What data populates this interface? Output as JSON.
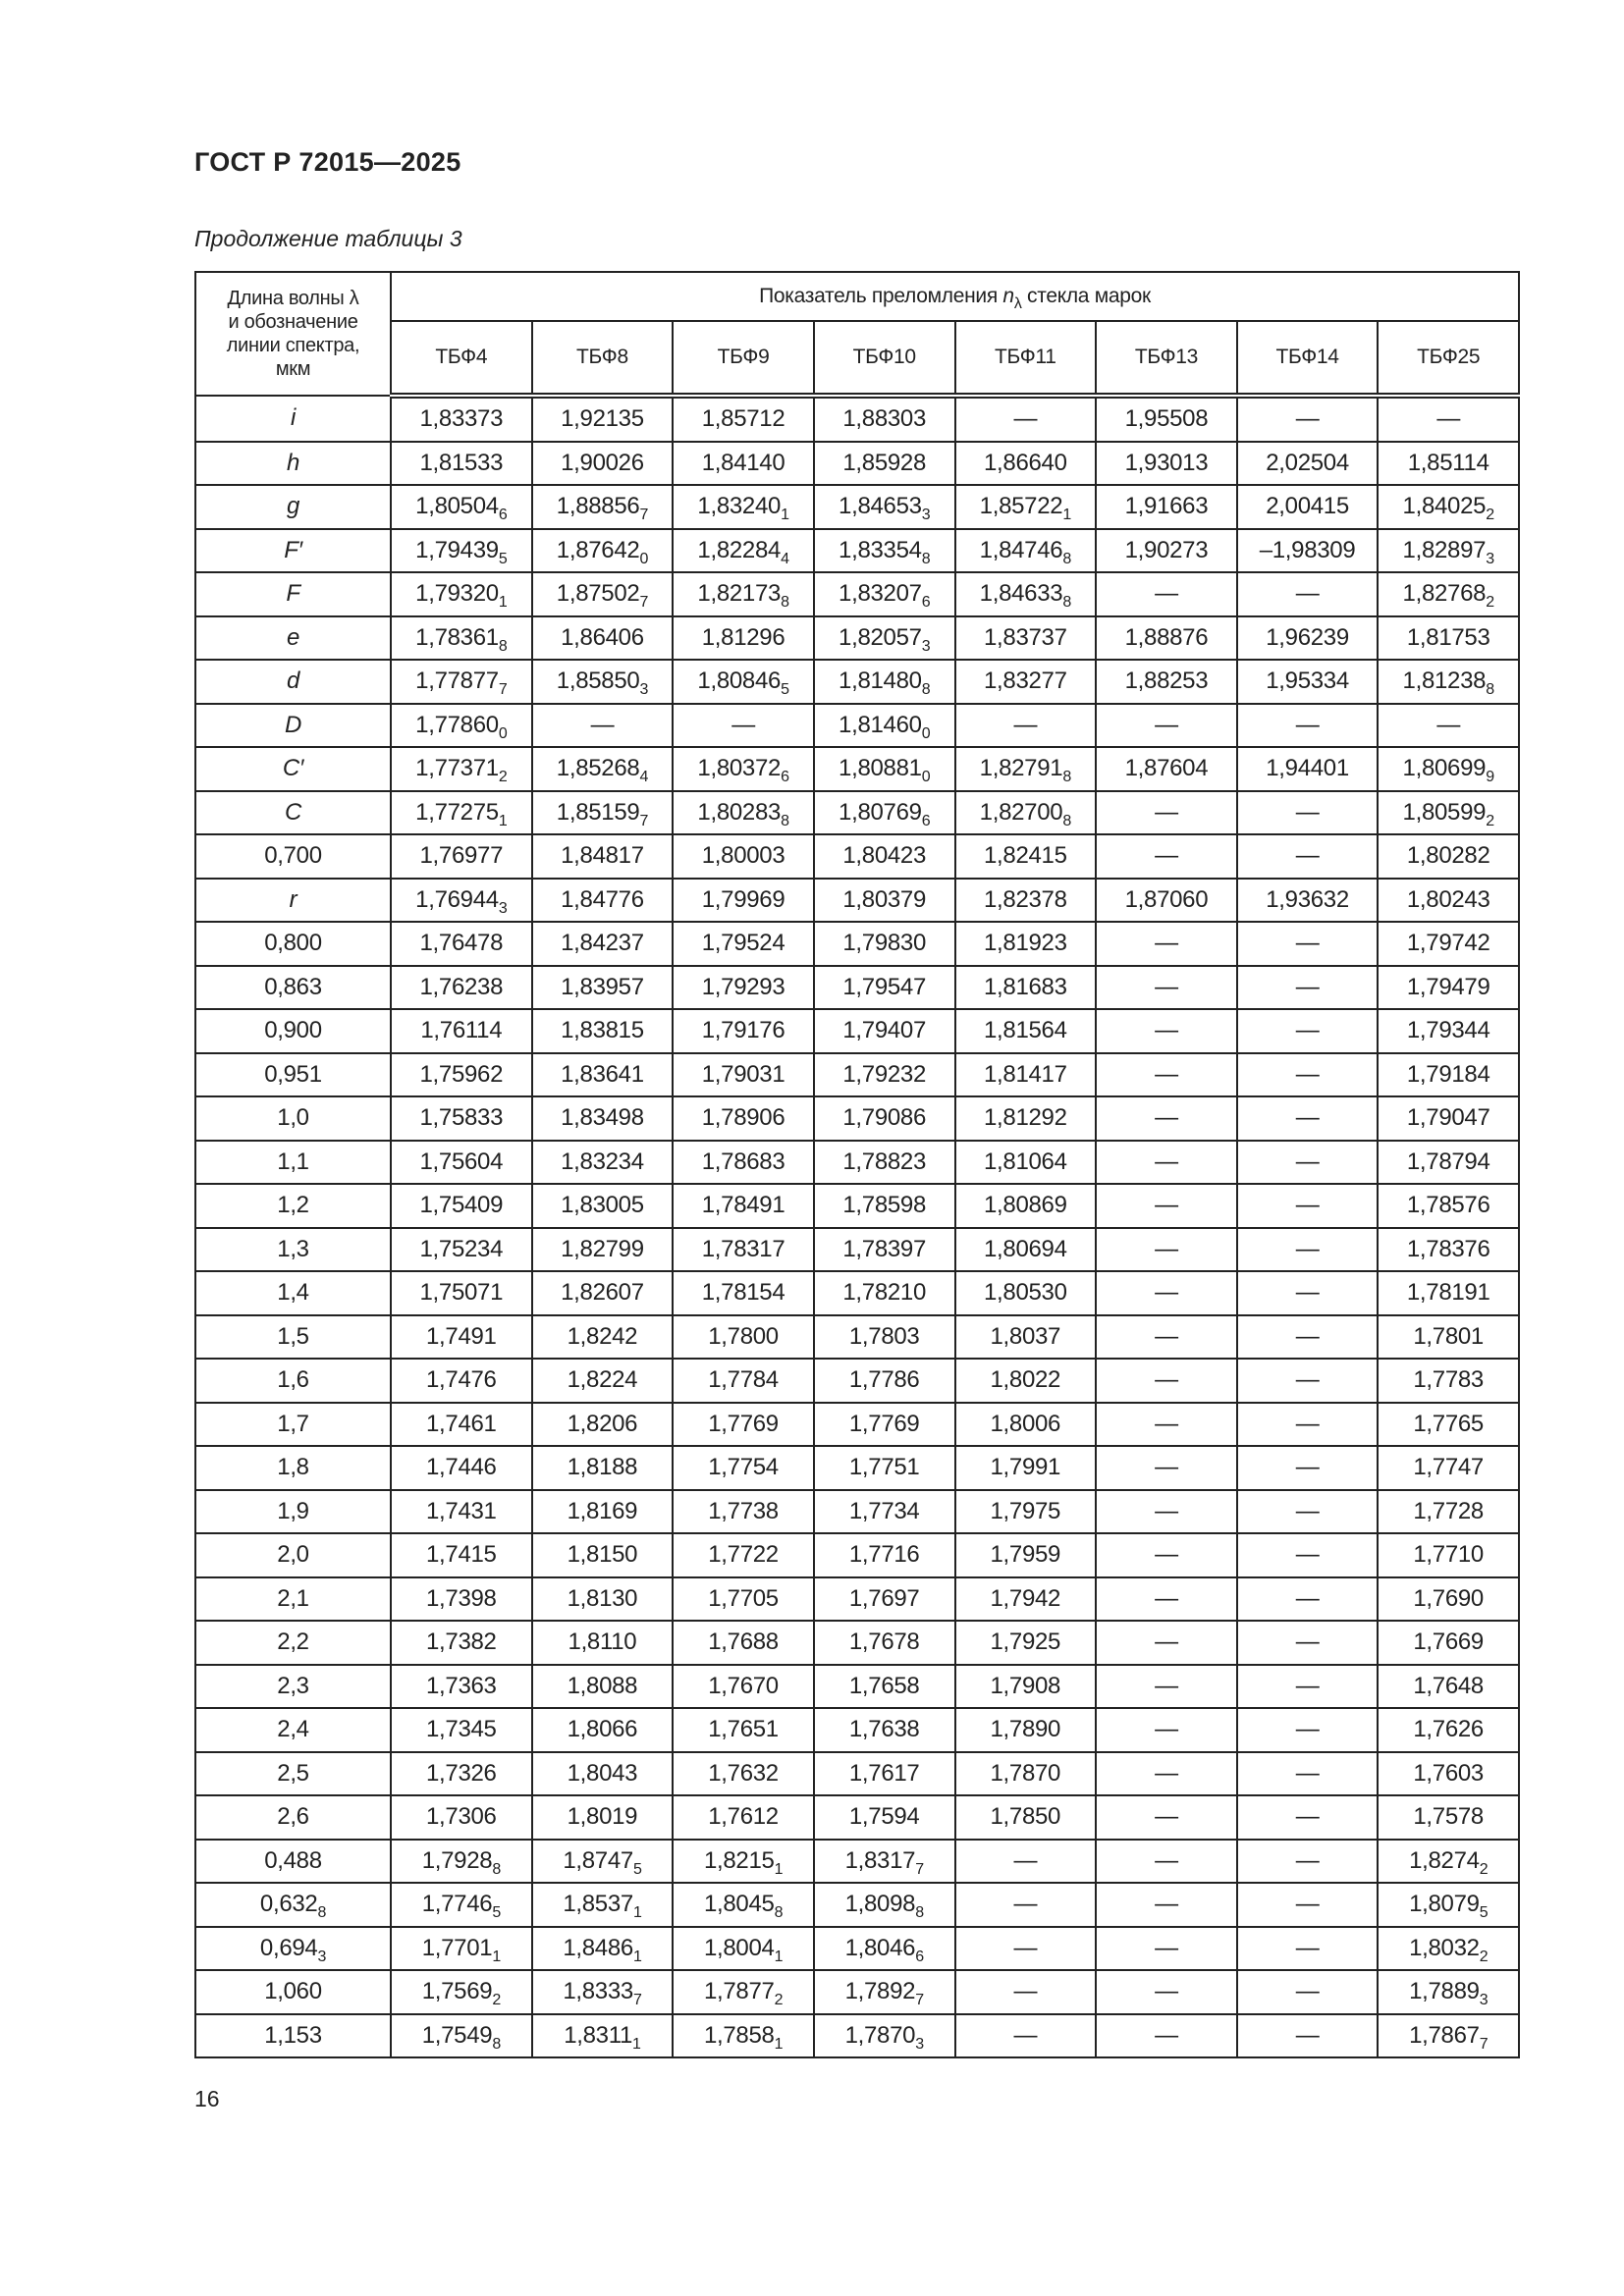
{
  "header": {
    "doc_title": "ГОСТ Р 72015—2025",
    "caption": "Продолжение таблицы 3",
    "page_number": "16"
  },
  "table": {
    "lead_header": [
      "Длина волны λ",
      "и обозначение",
      "линии спектра,",
      "мкм"
    ],
    "group_header": {
      "text_before": "Показатель преломления ",
      "symbol": "n",
      "symbol_sub": "λ",
      "text_after": " стекла марок"
    },
    "columns": [
      "ТБФ4",
      "ТБФ8",
      "ТБФ9",
      "ТБФ10",
      "ТБФ11",
      "ТБФ13",
      "ТБФ14",
      "ТБФ25"
    ],
    "rows": [
      {
        "label": "i",
        "italic": true,
        "cells": [
          "1,83373",
          "1,92135",
          "1,85712",
          "1,88303",
          "—",
          "1,95508",
          "—",
          "—"
        ]
      },
      {
        "label": "h",
        "italic": true,
        "cells": [
          "1,81533",
          "1,90026",
          "1,84140",
          "1,85928",
          "1,86640",
          "1,93013",
          "2,02504",
          "1,85114"
        ]
      },
      {
        "label": "g",
        "italic": true,
        "cells": [
          "1,80504_6",
          "1,88856_7",
          "1,83240_1",
          "1,84653_3",
          "1,85722_1",
          "1,91663",
          "2,00415",
          "1,84025_2"
        ]
      },
      {
        "label": "F′",
        "italic": true,
        "cells": [
          "1,79439_5",
          "1,87642_0",
          "1,82284_4",
          "1,83354_8",
          "1,84746_8",
          "1,90273",
          "–1,98309",
          "1,82897_3"
        ]
      },
      {
        "label": "F",
        "italic": true,
        "cells": [
          "1,79320_1",
          "1,87502_7",
          "1,82173_8",
          "1,83207_6",
          "1,84633_8",
          "—",
          "—",
          "1,82768_2"
        ]
      },
      {
        "label": "e",
        "italic": true,
        "cells": [
          "1,78361_8",
          "1,86406",
          "1,81296",
          "1,82057_3",
          "1,83737",
          "1,88876",
          "1,96239",
          "1,81753"
        ]
      },
      {
        "label": "d",
        "italic": true,
        "cells": [
          "1,77877_7",
          "1,85850_3",
          "1,80846_5",
          "1,81480_8",
          "1,83277",
          "1,88253",
          "1,95334",
          "1,81238_8"
        ]
      },
      {
        "label": "D",
        "italic": true,
        "cells": [
          "1,77860_0",
          "—",
          "—",
          "1,81460_0",
          "—",
          "—",
          "—",
          "—"
        ]
      },
      {
        "label": "C′",
        "italic": true,
        "cells": [
          "1,77371_2",
          "1,85268_4",
          "1,80372_6",
          "1,80881_0",
          "1,82791_8",
          "1,87604",
          "1,94401",
          "1,80699_9"
        ]
      },
      {
        "label": "C",
        "italic": true,
        "cells": [
          "1,77275_1",
          "1,85159_7",
          "1,80283_8",
          "1,80769_6",
          "1,82700_8",
          "—",
          "—",
          "1,80599_2"
        ]
      },
      {
        "label": "0,700",
        "italic": false,
        "cells": [
          "1,76977",
          "1,84817",
          "1,80003",
          "1,80423",
          "1,82415",
          "—",
          "—",
          "1,80282"
        ]
      },
      {
        "label": "r",
        "italic": true,
        "cells": [
          "1,76944_3",
          "1,84776",
          "1,79969",
          "1,80379",
          "1,82378",
          "1,87060",
          "1,93632",
          "1,80243"
        ]
      },
      {
        "label": "0,800",
        "italic": false,
        "cells": [
          "1,76478",
          "1,84237",
          "1,79524",
          "1,79830",
          "1,81923",
          "—",
          "—",
          "1,79742"
        ]
      },
      {
        "label": "0,863",
        "italic": false,
        "cells": [
          "1,76238",
          "1,83957",
          "1,79293",
          "1,79547",
          "1,81683",
          "—",
          "—",
          "1,79479"
        ]
      },
      {
        "label": "0,900",
        "italic": false,
        "cells": [
          "1,76114",
          "1,83815",
          "1,79176",
          "1,79407",
          "1,81564",
          "—",
          "—",
          "1,79344"
        ]
      },
      {
        "label": "0,951",
        "italic": false,
        "cells": [
          "1,75962",
          "1,83641",
          "1,79031",
          "1,79232",
          "1,81417",
          "—",
          "—",
          "1,79184"
        ]
      },
      {
        "label": "1,0",
        "italic": false,
        "cells": [
          "1,75833",
          "1,83498",
          "1,78906",
          "1,79086",
          "1,81292",
          "—",
          "—",
          "1,79047"
        ]
      },
      {
        "label": "1,1",
        "italic": false,
        "cells": [
          "1,75604",
          "1,83234",
          "1,78683",
          "1,78823",
          "1,81064",
          "—",
          "—",
          "1,78794"
        ]
      },
      {
        "label": "1,2",
        "italic": false,
        "cells": [
          "1,75409",
          "1,83005",
          "1,78491",
          "1,78598",
          "1,80869",
          "—",
          "—",
          "1,78576"
        ]
      },
      {
        "label": "1,3",
        "italic": false,
        "cells": [
          "1,75234",
          "1,82799",
          "1,78317",
          "1,78397",
          "1,80694",
          "—",
          "—",
          "1,78376"
        ]
      },
      {
        "label": "1,4",
        "italic": false,
        "cells": [
          "1,75071",
          "1,82607",
          "1,78154",
          "1,78210",
          "1,80530",
          "—",
          "—",
          "1,78191"
        ]
      },
      {
        "label": "1,5",
        "italic": false,
        "cells": [
          "1,7491",
          "1,8242",
          "1,7800",
          "1,7803",
          "1,8037",
          "—",
          "—",
          "1,7801"
        ]
      },
      {
        "label": "1,6",
        "italic": false,
        "cells": [
          "1,7476",
          "1,8224",
          "1,7784",
          "1,7786",
          "1,8022",
          "—",
          "—",
          "1,7783"
        ]
      },
      {
        "label": "1,7",
        "italic": false,
        "cells": [
          "1,7461",
          "1,8206",
          "1,7769",
          "1,7769",
          "1,8006",
          "—",
          "—",
          "1,7765"
        ]
      },
      {
        "label": "1,8",
        "italic": false,
        "cells": [
          "1,7446",
          "1,8188",
          "1,7754",
          "1,7751",
          "1,7991",
          "—",
          "—",
          "1,7747"
        ]
      },
      {
        "label": "1,9",
        "italic": false,
        "cells": [
          "1,7431",
          "1,8169",
          "1,7738",
          "1,7734",
          "1,7975",
          "—",
          "—",
          "1,7728"
        ]
      },
      {
        "label": "2,0",
        "italic": false,
        "cells": [
          "1,7415",
          "1,8150",
          "1,7722",
          "1,7716",
          "1,7959",
          "—",
          "—",
          "1,7710"
        ]
      },
      {
        "label": "2,1",
        "italic": false,
        "cells": [
          "1,7398",
          "1,8130",
          "1,7705",
          "1,7697",
          "1,7942",
          "—",
          "—",
          "1,7690"
        ]
      },
      {
        "label": "2,2",
        "italic": false,
        "cells": [
          "1,7382",
          "1,8110",
          "1,7688",
          "1,7678",
          "1,7925",
          "—",
          "—",
          "1,7669"
        ]
      },
      {
        "label": "2,3",
        "italic": false,
        "cells": [
          "1,7363",
          "1,8088",
          "1,7670",
          "1,7658",
          "1,7908",
          "—",
          "—",
          "1,7648"
        ]
      },
      {
        "label": "2,4",
        "italic": false,
        "cells": [
          "1,7345",
          "1,8066",
          "1,7651",
          "1,7638",
          "1,7890",
          "—",
          "—",
          "1,7626"
        ]
      },
      {
        "label": "2,5",
        "italic": false,
        "cells": [
          "1,7326",
          "1,8043",
          "1,7632",
          "1,7617",
          "1,7870",
          "—",
          "—",
          "1,7603"
        ]
      },
      {
        "label": "2,6",
        "italic": false,
        "cells": [
          "1,7306",
          "1,8019",
          "1,7612",
          "1,7594",
          "1,7850",
          "—",
          "—",
          "1,7578"
        ]
      },
      {
        "label": "0,488",
        "italic": false,
        "cells": [
          "1,7928_8",
          "1,8747_5",
          "1,8215_1",
          "1,8317_7",
          "—",
          "—",
          "—",
          "1,8274_2"
        ]
      },
      {
        "label": "0,632_8",
        "italic": false,
        "cells": [
          "1,7746_5",
          "1,8537_1",
          "1,8045_8",
          "1,8098_8",
          "—",
          "—",
          "—",
          "1,8079_5"
        ]
      },
      {
        "label": "0,694_3",
        "italic": false,
        "cells": [
          "1,7701_1",
          "1,8486_1",
          "1,8004_1",
          "1,8046_6",
          "—",
          "—",
          "—",
          "1,8032_2"
        ]
      },
      {
        "label": "1,060",
        "italic": false,
        "cells": [
          "1,7569_2",
          "1,8333_7",
          "1,7877_2",
          "1,7892_7",
          "—",
          "—",
          "—",
          "1,7889_3"
        ]
      },
      {
        "label": "1,153",
        "italic": false,
        "cells": [
          "1,7549_8",
          "1,8311_1",
          "1,7858_1",
          "1,7870_3",
          "—",
          "—",
          "—",
          "1,7867_7"
        ]
      }
    ]
  }
}
